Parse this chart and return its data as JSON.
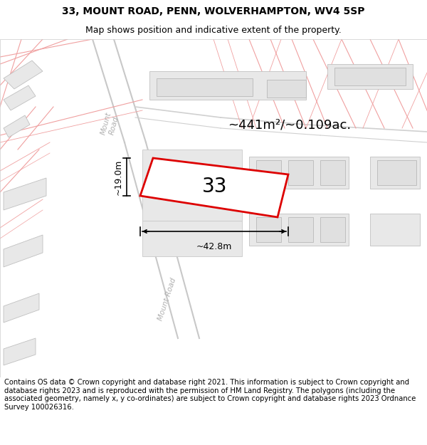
{
  "title_line1": "33, MOUNT ROAD, PENN, WOLVERHAMPTON, WV4 5SP",
  "title_line2": "Map shows position and indicative extent of the property.",
  "footer_text": "Contains OS data © Crown copyright and database right 2021. This information is subject to Crown copyright and database rights 2023 and is reproduced with the permission of HM Land Registry. The polygons (including the associated geometry, namely x, y co-ordinates) are subject to Crown copyright and database rights 2023 Ordnance Survey 100026316.",
  "area_label": "~441m²/~0.109ac.",
  "width_label": "~42.8m",
  "height_label": "~19.0m",
  "plot_number": "33",
  "map_bg": "#ffffff",
  "road_line_color": "#f0a0a0",
  "road_fill_color": "#f5f5f5",
  "building_fill": "#e8e8e8",
  "building_edge": "#c8c8c8",
  "plot_fill": "#ffffff",
  "plot_edge": "#dd0000",
  "road_label_color": "#b8b8b8",
  "title_fontsize": 10,
  "subtitle_fontsize": 9,
  "footer_fontsize": 7.2
}
